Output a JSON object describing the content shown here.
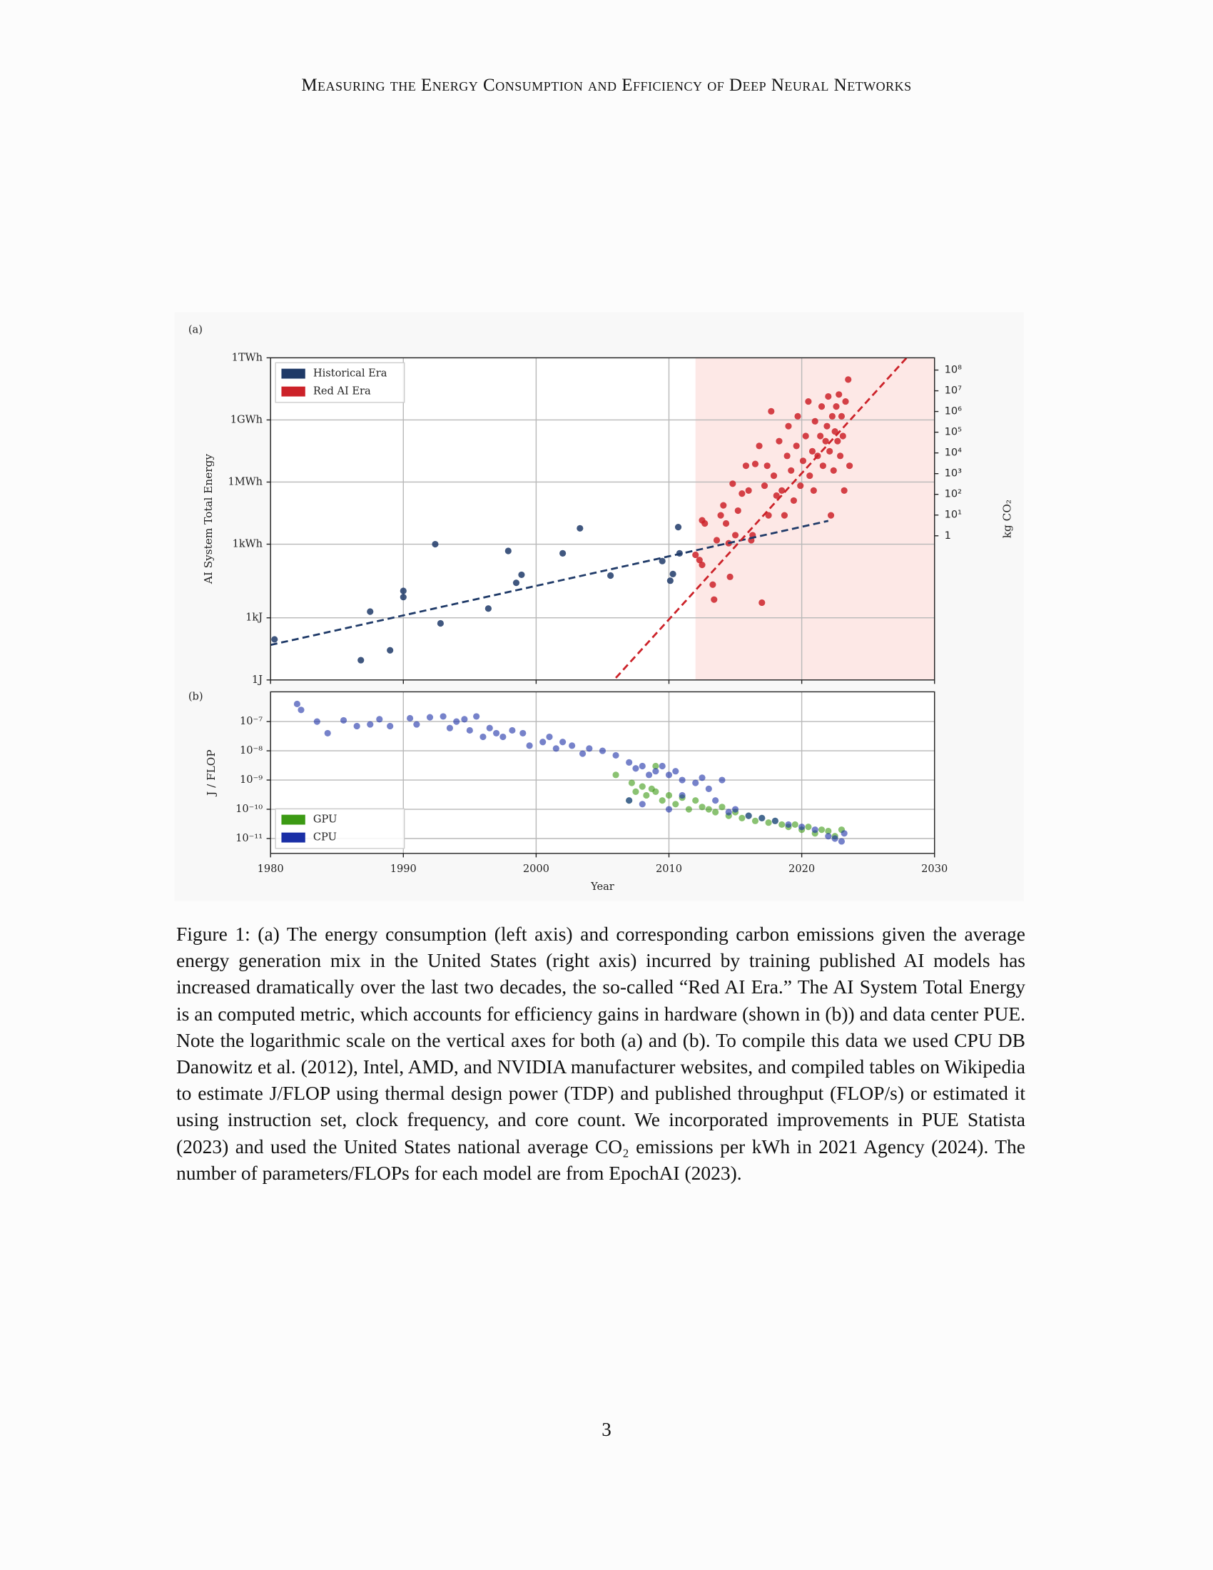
{
  "header": "Measuring the Energy Consumption and Efficiency of Deep Neural Networks",
  "chart_data": [
    {
      "type": "scatter",
      "panel_label": "(a)",
      "ylabel": "AI System Total Energy",
      "y2label": "kg CO₂",
      "xlim": [
        1980,
        2030
      ],
      "xticks": [
        1980,
        1990,
        2000,
        2010,
        2020,
        2030
      ],
      "ylog": true,
      "ylim": [
        1,
        3600000000000000.0
      ],
      "yticks": [
        {
          "value": 1,
          "label": "1J"
        },
        {
          "value": 1000,
          "label": "1kJ"
        },
        {
          "value": 3600000,
          "label": "1kWh"
        },
        {
          "value": 3600000000,
          "label": "1MWh"
        },
        {
          "value": 3600000000000,
          "label": "1GWh"
        },
        {
          "value": 3600000000000000,
          "label": "1TWh"
        }
      ],
      "y2lim": [
        1.1e-07,
        390000000.0
      ],
      "y2ticks": [
        1,
        {
          "value": 10,
          "label": "10¹"
        },
        {
          "value": 100,
          "label": "10²"
        },
        {
          "value": 1000,
          "label": "10³"
        },
        {
          "value": 10000,
          "label": "10⁴"
        },
        {
          "value": 100000,
          "label": "10⁵"
        },
        {
          "value": 1000000,
          "label": "10⁶"
        },
        {
          "value": 10000000,
          "label": "10⁷"
        },
        {
          "value": 100000000,
          "label": "10⁸"
        }
      ],
      "grid": true,
      "legend": "upper left",
      "shade_x": [
        2012,
        2030
      ],
      "shade_color": "#fde8e6",
      "series": [
        {
          "name": "Historical Era",
          "color": "#1f3a68",
          "x": [
            1980.3,
            1986.8,
            1987.5,
            1989,
            1990,
            1990,
            1992.4,
            1992.8,
            1996.4,
            1997.9,
            1998.5,
            1998.9,
            2002,
            2003.3,
            2005.6,
            2009.5,
            2010.1,
            2010.3,
            2010.7,
            2010.8
          ],
          "values": [
            91,
            9,
            2000,
            27,
            20000,
            10000,
            3600000,
            540,
            2800,
            1700000,
            49000,
            120000,
            1300000,
            21000000,
            110000,
            550000,
            62000,
            130000,
            24000000,
            1300000
          ]
        },
        {
          "name": "Red AI Era",
          "color": "#cc2229",
          "x": [
            2012.0,
            2012.3,
            2012.5,
            2012.7,
            2012.5,
            2013.3,
            2013.4,
            2013.6,
            2013.9,
            2014.1,
            2014.3,
            2014.5,
            2014.6,
            2014.8,
            2015.0,
            2015.2,
            2015.5,
            2015.8,
            2016.0,
            2016.2,
            2016.3,
            2016.5,
            2016.8,
            2017.0,
            2017.2,
            2017.4,
            2017.5,
            2017.7,
            2017.9,
            2018.1,
            2018.3,
            2018.5,
            2018.7,
            2018.9,
            2019.0,
            2019.2,
            2019.4,
            2019.6,
            2019.7,
            2019.9,
            2020.1,
            2020.3,
            2020.5,
            2020.6,
            2020.8,
            2020.9,
            2021.0,
            2021.2,
            2021.4,
            2021.5,
            2021.6,
            2021.8,
            2021.9,
            2022.0,
            2022.1,
            2022.2,
            2022.3,
            2022.4,
            2022.5,
            2022.6,
            2022.7,
            2022.8,
            2022.9,
            2023.0,
            2023.1,
            2023.2,
            2023.3,
            2023.5,
            2023.6
          ],
          "values": [
            1100000,
            620000,
            51000000,
            36000000,
            360000,
            40000,
            7600,
            5600000,
            89000000,
            270000000,
            36000000,
            4000000,
            95000,
            3000000000,
            9800000,
            150000000,
            1000000000,
            22000000000,
            1400000000,
            5600000,
            9800000,
            27000000000,
            200000000000,
            5400,
            2400000000,
            22000000000,
            89000000,
            9400000000000,
            7300000000,
            800000000,
            340000000000,
            1400000000,
            89000000,
            66000000000,
            1800000000000,
            13000000000,
            460000000,
            200000000000,
            5400000000000,
            2400000000,
            38000000000,
            600000000000,
            28000000000000,
            7300000000,
            110000000000,
            1400000000,
            3100000000000,
            66000000000,
            600000000000,
            16000000000000,
            22000000000,
            340000000000,
            1800000000000,
            49000000000000,
            110000000000,
            89000000,
            5400000000000,
            13000000000,
            1000000000000,
            16000000000000,
            340000000000,
            61000000000000,
            66000000000,
            5400000000000,
            600000000000,
            1400000000,
            28000000000000,
            320000000000000,
            22000000000
          ]
        }
      ],
      "fit_lines": [
        {
          "color": "#1f3a68",
          "x": [
            1980,
            2022
          ],
          "values": [
            49,
            48000000
          ]
        },
        {
          "color": "#cc2229",
          "x": [
            2006,
            2027.9
          ],
          "values": [
            1.25,
            3600000000000000
          ]
        }
      ]
    },
    {
      "type": "scatter",
      "panel_label": "(b)",
      "ylabel": "J / FLOP",
      "xlabel": "Year",
      "xlim": [
        1980,
        2030
      ],
      "xticks": [
        1980,
        1990,
        2000,
        2010,
        2020,
        2030
      ],
      "ylog": true,
      "ylim": [
        3.1e-12,
        1.04e-06
      ],
      "yticks": [
        {
          "value": 1e-11,
          "label": "10⁻¹¹"
        },
        {
          "value": 1e-10,
          "label": "10⁻¹⁰"
        },
        {
          "value": 1e-09,
          "label": "10⁻⁹"
        },
        {
          "value": 1e-08,
          "label": "10⁻⁸"
        },
        {
          "value": 1e-07,
          "label": "10⁻⁷"
        }
      ],
      "grid": true,
      "legend": "lower left",
      "series": [
        {
          "name": "GPU",
          "color": "#3c9a14",
          "x": [
            2006,
            2007,
            2007.5,
            2008,
            2008.3,
            2008.7,
            2009,
            2009.5,
            2010,
            2010.5,
            2011,
            2011.5,
            2012,
            2012.5,
            2013,
            2013.5,
            2014,
            2014.5,
            2015,
            2015.5,
            2016,
            2016.5,
            2017,
            2017.5,
            2018,
            2018.5,
            2019,
            2019.5,
            2020,
            2020.5,
            2021,
            2021.5,
            2022,
            2022.5,
            2023,
            2009,
            2007.2
          ],
          "values": [
            1.5e-09,
            2e-10,
            4e-10,
            6e-10,
            3e-10,
            5e-10,
            4e-10,
            2e-10,
            3e-10,
            1.5e-10,
            2.5e-10,
            1e-10,
            2e-10,
            1.2e-10,
            1e-10,
            8e-11,
            1.2e-10,
            6e-11,
            8e-11,
            5e-11,
            6e-11,
            4e-11,
            5e-11,
            3.5e-11,
            4e-11,
            3e-11,
            2.5e-11,
            3e-11,
            2e-11,
            2.5e-11,
            1.5e-11,
            2e-11,
            1.8e-11,
            1.2e-11,
            2e-11,
            3e-09,
            8e-10
          ]
        },
        {
          "name": "CPU",
          "color": "#1a2fa6",
          "x": [
            1982,
            1982.3,
            1983.5,
            1984.3,
            1985.5,
            1986.5,
            1987.5,
            1988.2,
            1989,
            1990.5,
            1991,
            1992,
            1993,
            1993.5,
            1994,
            1994.6,
            1995,
            1995.5,
            1996,
            1996.5,
            1997,
            1997.5,
            1998.2,
            1999,
            1999.5,
            2000.5,
            2001,
            2001.5,
            2002,
            2002.7,
            2003.5,
            2004,
            2005,
            2006,
            2007,
            2007.5,
            2008,
            2008.5,
            2009,
            2009.5,
            2010,
            2010.5,
            2011,
            2012,
            2012.5,
            2013,
            2013.5,
            2014,
            2014.5,
            2015,
            2016,
            2017,
            2018,
            2019,
            2020,
            2021,
            2022,
            2022.5,
            2023,
            2023.2,
            2007,
            2008,
            2010,
            2011
          ],
          "values": [
            4e-07,
            2.5e-07,
            1e-07,
            4e-08,
            1.1e-07,
            7e-08,
            8e-08,
            1.2e-07,
            7e-08,
            1.3e-07,
            8e-08,
            1.4e-07,
            1.5e-07,
            6e-08,
            1e-07,
            1.2e-07,
            5e-08,
            1.5e-07,
            3e-08,
            6e-08,
            4e-08,
            3e-08,
            5e-08,
            4e-08,
            1.5e-08,
            2e-08,
            3e-08,
            1.2e-08,
            2e-08,
            1.5e-08,
            8e-09,
            1.2e-08,
            1e-08,
            7e-09,
            4e-09,
            2.5e-09,
            3e-09,
            1.5e-09,
            2e-09,
            3e-09,
            1.5e-09,
            2e-09,
            1e-09,
            8e-10,
            1.2e-09,
            5e-10,
            2e-10,
            1e-09,
            8e-11,
            1e-10,
            6e-11,
            5e-11,
            4e-11,
            3e-11,
            2.5e-11,
            2e-11,
            1.2e-11,
            1e-11,
            8e-12,
            1.5e-11,
            2e-10,
            1.5e-10,
            1e-10,
            3e-10
          ]
        }
      ]
    }
  ],
  "caption": "Figure 1: (a) The energy consumption (left axis) and corresponding carbon emissions given the average energy generation mix in the United States (right axis) incurred by training published AI models has increased dramatically over the last two decades, the so-called “Red AI Era.” The AI System Total Energy is an computed metric, which accounts for efficiency gains in hardware (shown in (b)) and data center PUE. Note the logarithmic scale on the vertical axes for both (a) and (b). To compile this data we used CPU DB Danowitz et al. (2012), Intel, AMD, and NVIDIA manufacturer websites, and compiled tables on Wikipedia to estimate J/FLOP using thermal design power (TDP) and published throughput (FLOP/s) or estimated it using instruction set, clock frequency, and core count. We incorporated improvements in PUE Statista (2023) and used the United States national average CO₂ emissions per kWh in 2021 Agency (2024). The number of parameters/FLOPs for each model are from EpochAI (2023).",
  "page_number": "3"
}
